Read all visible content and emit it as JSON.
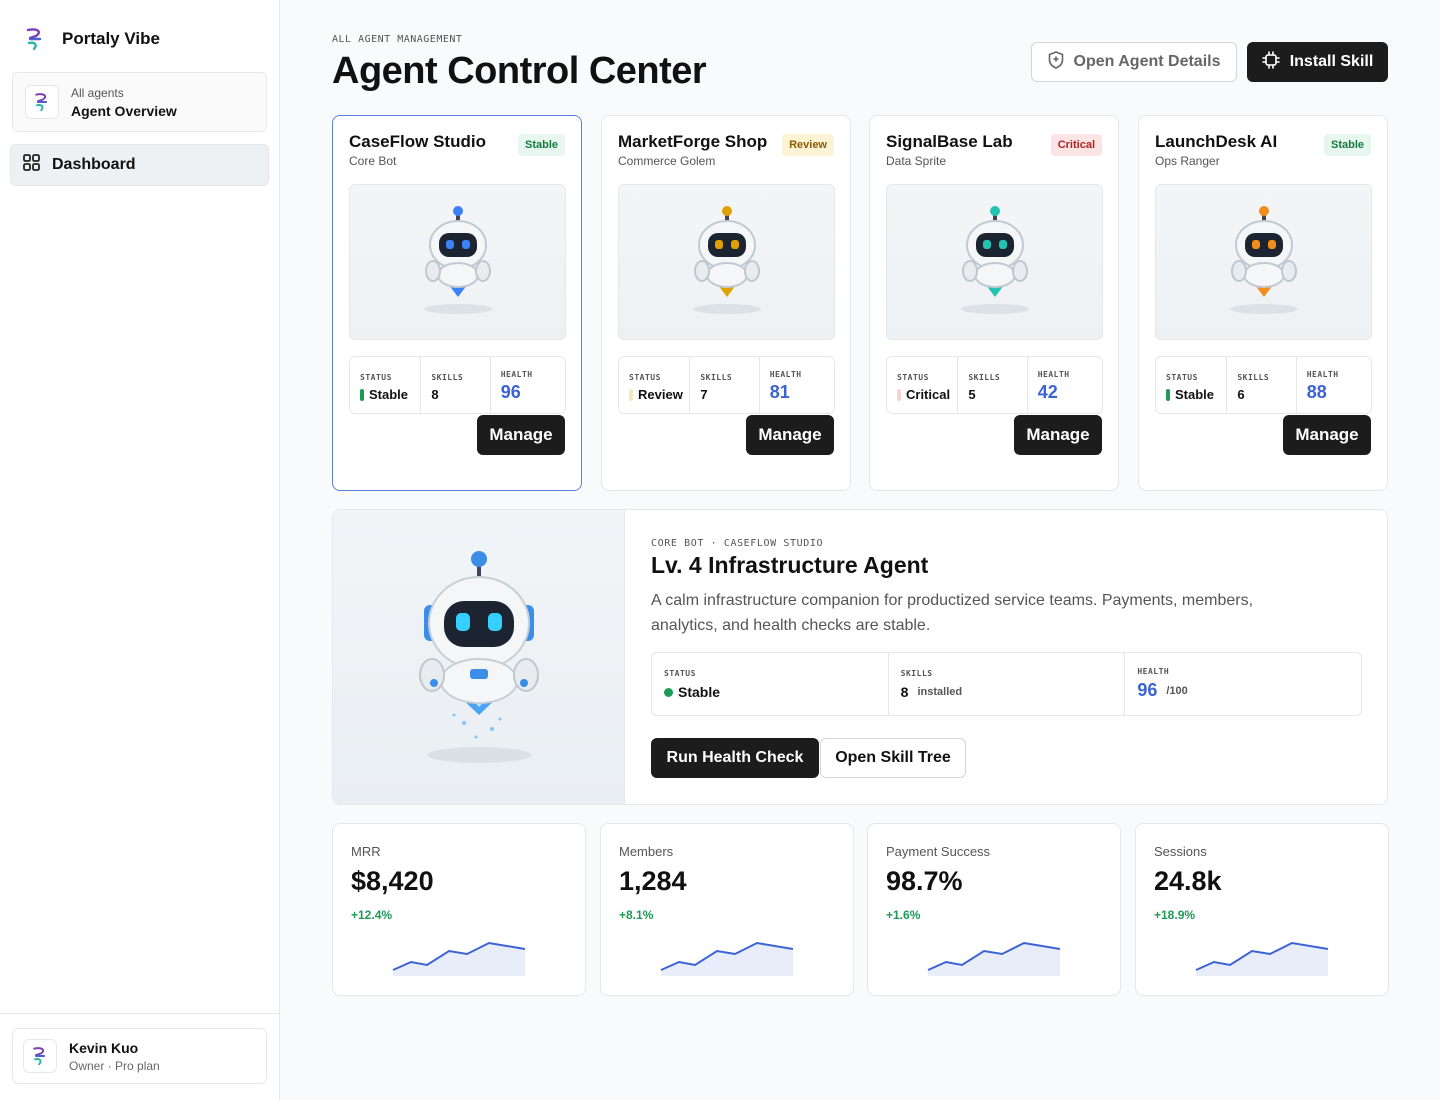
{
  "sidebar": {
    "brand": "Portaly Vibe",
    "workspace": {
      "sub": "All agents",
      "title": "Agent Overview"
    },
    "nav": [
      {
        "label": "Dashboard",
        "active": true
      }
    ],
    "user": {
      "name": "Kevin Kuo",
      "role": "Owner · Pro plan"
    }
  },
  "header": {
    "eyebrow": "ALL AGENT MANAGEMENT",
    "title": "Agent Control Center",
    "open_details": "Open Agent Details",
    "install_skill": "Install Skill"
  },
  "stat_labels": {
    "status": "STATUS",
    "skills": "SKILLS",
    "health": "HEALTH"
  },
  "cards": [
    {
      "name": "CaseFlow Studio",
      "type": "Core Bot",
      "badge": "Stable",
      "status": "Stable",
      "skills": "8",
      "health": "96",
      "manage": "Manage",
      "accent": "#3b82f6"
    },
    {
      "name": "MarketForge Shop",
      "type": "Commerce Golem",
      "badge": "Review",
      "status": "Review",
      "skills": "7",
      "health": "81",
      "manage": "Manage",
      "accent": "#e0a100"
    },
    {
      "name": "SignalBase Lab",
      "type": "Data Sprite",
      "badge": "Critical",
      "status": "Critical",
      "skills": "5",
      "health": "42",
      "manage": "Manage",
      "accent": "#22c3b0"
    },
    {
      "name": "LaunchDesk AI",
      "type": "Ops Ranger",
      "badge": "Stable",
      "status": "Stable",
      "skills": "6",
      "health": "88",
      "manage": "Manage",
      "accent": "#f28c1c"
    }
  ],
  "detail": {
    "eyebrow": "CORE BOT · CASEFLOW STUDIO",
    "title": "Lv. 4 Infrastructure Agent",
    "description": "A calm infrastructure companion for productized service teams. Payments, members, analytics, and health checks are stable.",
    "status": "Stable",
    "skills": "8",
    "skills_unit": "installed",
    "health": "96",
    "health_unit": "/100",
    "run_health": "Run Health Check",
    "open_tree": "Open Skill Tree"
  },
  "metrics": [
    {
      "label": "MRR",
      "value": "$8,420",
      "delta": "+12.4%"
    },
    {
      "label": "Members",
      "value": "1,284",
      "delta": "+8.1%"
    },
    {
      "label": "Payment Success",
      "value": "98.7%",
      "delta": "+1.6%"
    },
    {
      "label": "Sessions",
      "value": "24.8k",
      "delta": "+18.9%"
    }
  ],
  "colors": {
    "accent_blue": "#3b63d6",
    "stable": "#1f9a55",
    "review": "#e0a100",
    "critical": "#d64545",
    "dark": "#1c1c1c"
  }
}
